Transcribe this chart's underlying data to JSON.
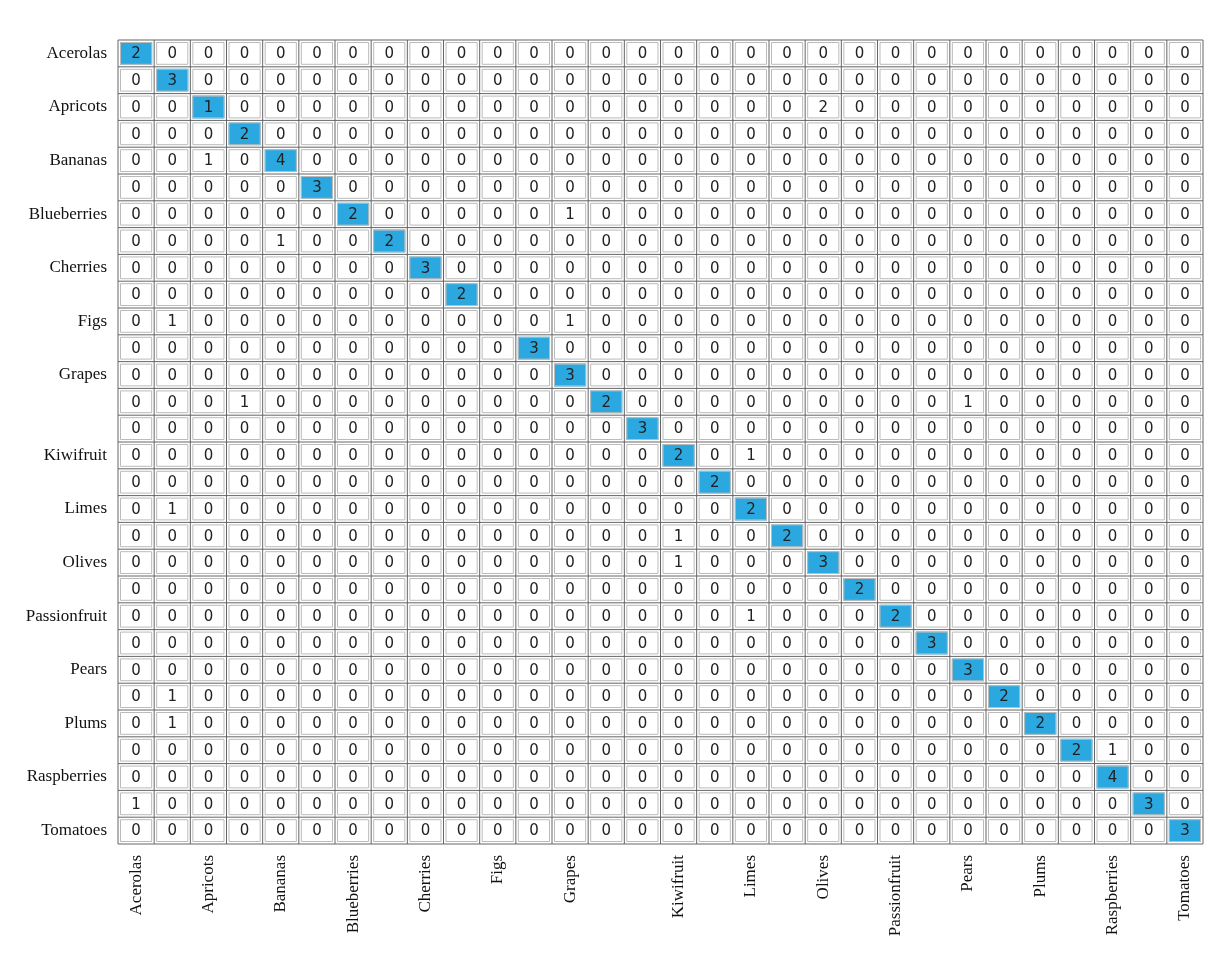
{
  "chart_data": {
    "type": "heatmap",
    "categories": [
      "Acerolas",
      null,
      "Apricots",
      null,
      "Bananas",
      null,
      "Blueberries",
      null,
      "Cherries",
      null,
      "Figs",
      null,
      "Grapes",
      null,
      null,
      "Kiwifruit",
      null,
      "Limes",
      null,
      "Olives",
      null,
      "Passionfruit",
      null,
      "Pears",
      null,
      "Plums",
      null,
      "Raspberries",
      null,
      "Tomatoes"
    ],
    "y_categories": [
      "Acerolas",
      null,
      "Apricots",
      null,
      "Bananas",
      null,
      "Blueberries",
      null,
      "Cherries",
      null,
      "Figs",
      null,
      "Grapes",
      null,
      null,
      "Kiwifruit",
      null,
      "Limes",
      null,
      "Olives",
      null,
      "Passionfruit",
      null,
      "Pears",
      null,
      "Plums",
      null,
      "Raspberries",
      null,
      "Tomatoes"
    ],
    "color": "#2ba8e0",
    "cells": [
      [
        2,
        0,
        0,
        0,
        0,
        0,
        0,
        0,
        0,
        0,
        0,
        0,
        0,
        0,
        0,
        0,
        0,
        0,
        0,
        0,
        0,
        0,
        0,
        0,
        0,
        0,
        0,
        0,
        0,
        0
      ],
      [
        0,
        3,
        0,
        0,
        0,
        0,
        0,
        0,
        0,
        0,
        0,
        0,
        0,
        0,
        0,
        0,
        0,
        0,
        0,
        0,
        0,
        0,
        0,
        0,
        0,
        0,
        0,
        0,
        0,
        0
      ],
      [
        0,
        0,
        1,
        0,
        0,
        0,
        0,
        0,
        0,
        0,
        0,
        0,
        0,
        0,
        0,
        0,
        0,
        0,
        0,
        2,
        0,
        0,
        0,
        0,
        0,
        0,
        0,
        0,
        0,
        0
      ],
      [
        0,
        0,
        0,
        2,
        0,
        0,
        0,
        0,
        0,
        0,
        0,
        0,
        0,
        0,
        0,
        0,
        0,
        0,
        0,
        0,
        0,
        0,
        0,
        0,
        0,
        0,
        0,
        0,
        0,
        0
      ],
      [
        0,
        0,
        1,
        0,
        4,
        0,
        0,
        0,
        0,
        0,
        0,
        0,
        0,
        0,
        0,
        0,
        0,
        0,
        0,
        0,
        0,
        0,
        0,
        0,
        0,
        0,
        0,
        0,
        0,
        0
      ],
      [
        0,
        0,
        0,
        0,
        0,
        3,
        0,
        0,
        0,
        0,
        0,
        0,
        0,
        0,
        0,
        0,
        0,
        0,
        0,
        0,
        0,
        0,
        0,
        0,
        0,
        0,
        0,
        0,
        0,
        0
      ],
      [
        0,
        0,
        0,
        0,
        0,
        0,
        2,
        0,
        0,
        0,
        0,
        0,
        1,
        0,
        0,
        0,
        0,
        0,
        0,
        0,
        0,
        0,
        0,
        0,
        0,
        0,
        0,
        0,
        0,
        0
      ],
      [
        0,
        0,
        0,
        0,
        1,
        0,
        0,
        2,
        0,
        0,
        0,
        0,
        0,
        0,
        0,
        0,
        0,
        0,
        0,
        0,
        0,
        0,
        0,
        0,
        0,
        0,
        0,
        0,
        0,
        0
      ],
      [
        0,
        0,
        0,
        0,
        0,
        0,
        0,
        0,
        3,
        0,
        0,
        0,
        0,
        0,
        0,
        0,
        0,
        0,
        0,
        0,
        0,
        0,
        0,
        0,
        0,
        0,
        0,
        0,
        0,
        0
      ],
      [
        0,
        0,
        0,
        0,
        0,
        0,
        0,
        0,
        0,
        2,
        0,
        0,
        0,
        0,
        0,
        0,
        0,
        0,
        0,
        0,
        0,
        0,
        0,
        0,
        0,
        0,
        0,
        0,
        0,
        0
      ],
      [
        0,
        1,
        0,
        0,
        0,
        0,
        0,
        0,
        0,
        0,
        0,
        0,
        1,
        0,
        0,
        0,
        0,
        0,
        0,
        0,
        0,
        0,
        0,
        0,
        0,
        0,
        0,
        0,
        0,
        0
      ],
      [
        0,
        0,
        0,
        0,
        0,
        0,
        0,
        0,
        0,
        0,
        0,
        3,
        0,
        0,
        0,
        0,
        0,
        0,
        0,
        0,
        0,
        0,
        0,
        0,
        0,
        0,
        0,
        0,
        0,
        0
      ],
      [
        0,
        0,
        0,
        0,
        0,
        0,
        0,
        0,
        0,
        0,
        0,
        0,
        3,
        0,
        0,
        0,
        0,
        0,
        0,
        0,
        0,
        0,
        0,
        0,
        0,
        0,
        0,
        0,
        0,
        0
      ],
      [
        0,
        0,
        0,
        1,
        0,
        0,
        0,
        0,
        0,
        0,
        0,
        0,
        0,
        2,
        0,
        0,
        0,
        0,
        0,
        0,
        0,
        0,
        0,
        1,
        0,
        0,
        0,
        0,
        0,
        0
      ],
      [
        0,
        0,
        0,
        0,
        0,
        0,
        0,
        0,
        0,
        0,
        0,
        0,
        0,
        0,
        3,
        0,
        0,
        0,
        0,
        0,
        0,
        0,
        0,
        0,
        0,
        0,
        0,
        0,
        0,
        0
      ],
      [
        0,
        0,
        0,
        0,
        0,
        0,
        0,
        0,
        0,
        0,
        0,
        0,
        0,
        0,
        0,
        2,
        0,
        1,
        0,
        0,
        0,
        0,
        0,
        0,
        0,
        0,
        0,
        0,
        0,
        0
      ],
      [
        0,
        0,
        0,
        0,
        0,
        0,
        0,
        0,
        0,
        0,
        0,
        0,
        0,
        0,
        0,
        0,
        2,
        0,
        0,
        0,
        0,
        0,
        0,
        0,
        0,
        0,
        0,
        0,
        0,
        0
      ],
      [
        0,
        1,
        0,
        0,
        0,
        0,
        0,
        0,
        0,
        0,
        0,
        0,
        0,
        0,
        0,
        0,
        0,
        2,
        0,
        0,
        0,
        0,
        0,
        0,
        0,
        0,
        0,
        0,
        0,
        0
      ],
      [
        0,
        0,
        0,
        0,
        0,
        0,
        0,
        0,
        0,
        0,
        0,
        0,
        0,
        0,
        0,
        1,
        0,
        0,
        2,
        0,
        0,
        0,
        0,
        0,
        0,
        0,
        0,
        0,
        0,
        0
      ],
      [
        0,
        0,
        0,
        0,
        0,
        0,
        0,
        0,
        0,
        0,
        0,
        0,
        0,
        0,
        0,
        1,
        0,
        0,
        0,
        3,
        0,
        0,
        0,
        0,
        0,
        0,
        0,
        0,
        0,
        0
      ],
      [
        0,
        0,
        0,
        0,
        0,
        0,
        0,
        0,
        0,
        0,
        0,
        0,
        0,
        0,
        0,
        0,
        0,
        0,
        0,
        0,
        2,
        0,
        0,
        0,
        0,
        0,
        0,
        0,
        0,
        0
      ],
      [
        0,
        0,
        0,
        0,
        0,
        0,
        0,
        0,
        0,
        0,
        0,
        0,
        0,
        0,
        0,
        0,
        0,
        1,
        0,
        0,
        0,
        2,
        0,
        0,
        0,
        0,
        0,
        0,
        0,
        0
      ],
      [
        0,
        0,
        0,
        0,
        0,
        0,
        0,
        0,
        0,
        0,
        0,
        0,
        0,
        0,
        0,
        0,
        0,
        0,
        0,
        0,
        0,
        0,
        3,
        0,
        0,
        0,
        0,
        0,
        0,
        0
      ],
      [
        0,
        0,
        0,
        0,
        0,
        0,
        0,
        0,
        0,
        0,
        0,
        0,
        0,
        0,
        0,
        0,
        0,
        0,
        0,
        0,
        0,
        0,
        0,
        3,
        0,
        0,
        0,
        0,
        0,
        0
      ],
      [
        0,
        1,
        0,
        0,
        0,
        0,
        0,
        0,
        0,
        0,
        0,
        0,
        0,
        0,
        0,
        0,
        0,
        0,
        0,
        0,
        0,
        0,
        0,
        0,
        2,
        0,
        0,
        0,
        0,
        0
      ],
      [
        0,
        1,
        0,
        0,
        0,
        0,
        0,
        0,
        0,
        0,
        0,
        0,
        0,
        0,
        0,
        0,
        0,
        0,
        0,
        0,
        0,
        0,
        0,
        0,
        0,
        2,
        0,
        0,
        0,
        0
      ],
      [
        0,
        0,
        0,
        0,
        0,
        0,
        0,
        0,
        0,
        0,
        0,
        0,
        0,
        0,
        0,
        0,
        0,
        0,
        0,
        0,
        0,
        0,
        0,
        0,
        0,
        0,
        2,
        1,
        0,
        0
      ],
      [
        0,
        0,
        0,
        0,
        0,
        0,
        0,
        0,
        0,
        0,
        0,
        0,
        0,
        0,
        0,
        0,
        0,
        0,
        0,
        0,
        0,
        0,
        0,
        0,
        0,
        0,
        0,
        4,
        0,
        0
      ],
      [
        1,
        0,
        0,
        0,
        0,
        0,
        0,
        0,
        0,
        0,
        0,
        0,
        0,
        0,
        0,
        0,
        0,
        0,
        0,
        0,
        0,
        0,
        0,
        0,
        0,
        0,
        0,
        0,
        3,
        0
      ],
      [
        0,
        0,
        0,
        0,
        0,
        0,
        0,
        0,
        0,
        0,
        0,
        0,
        0,
        0,
        0,
        0,
        0,
        0,
        0,
        0,
        0,
        0,
        0,
        0,
        0,
        0,
        0,
        0,
        0,
        3
      ]
    ],
    "data_labels": true
  }
}
